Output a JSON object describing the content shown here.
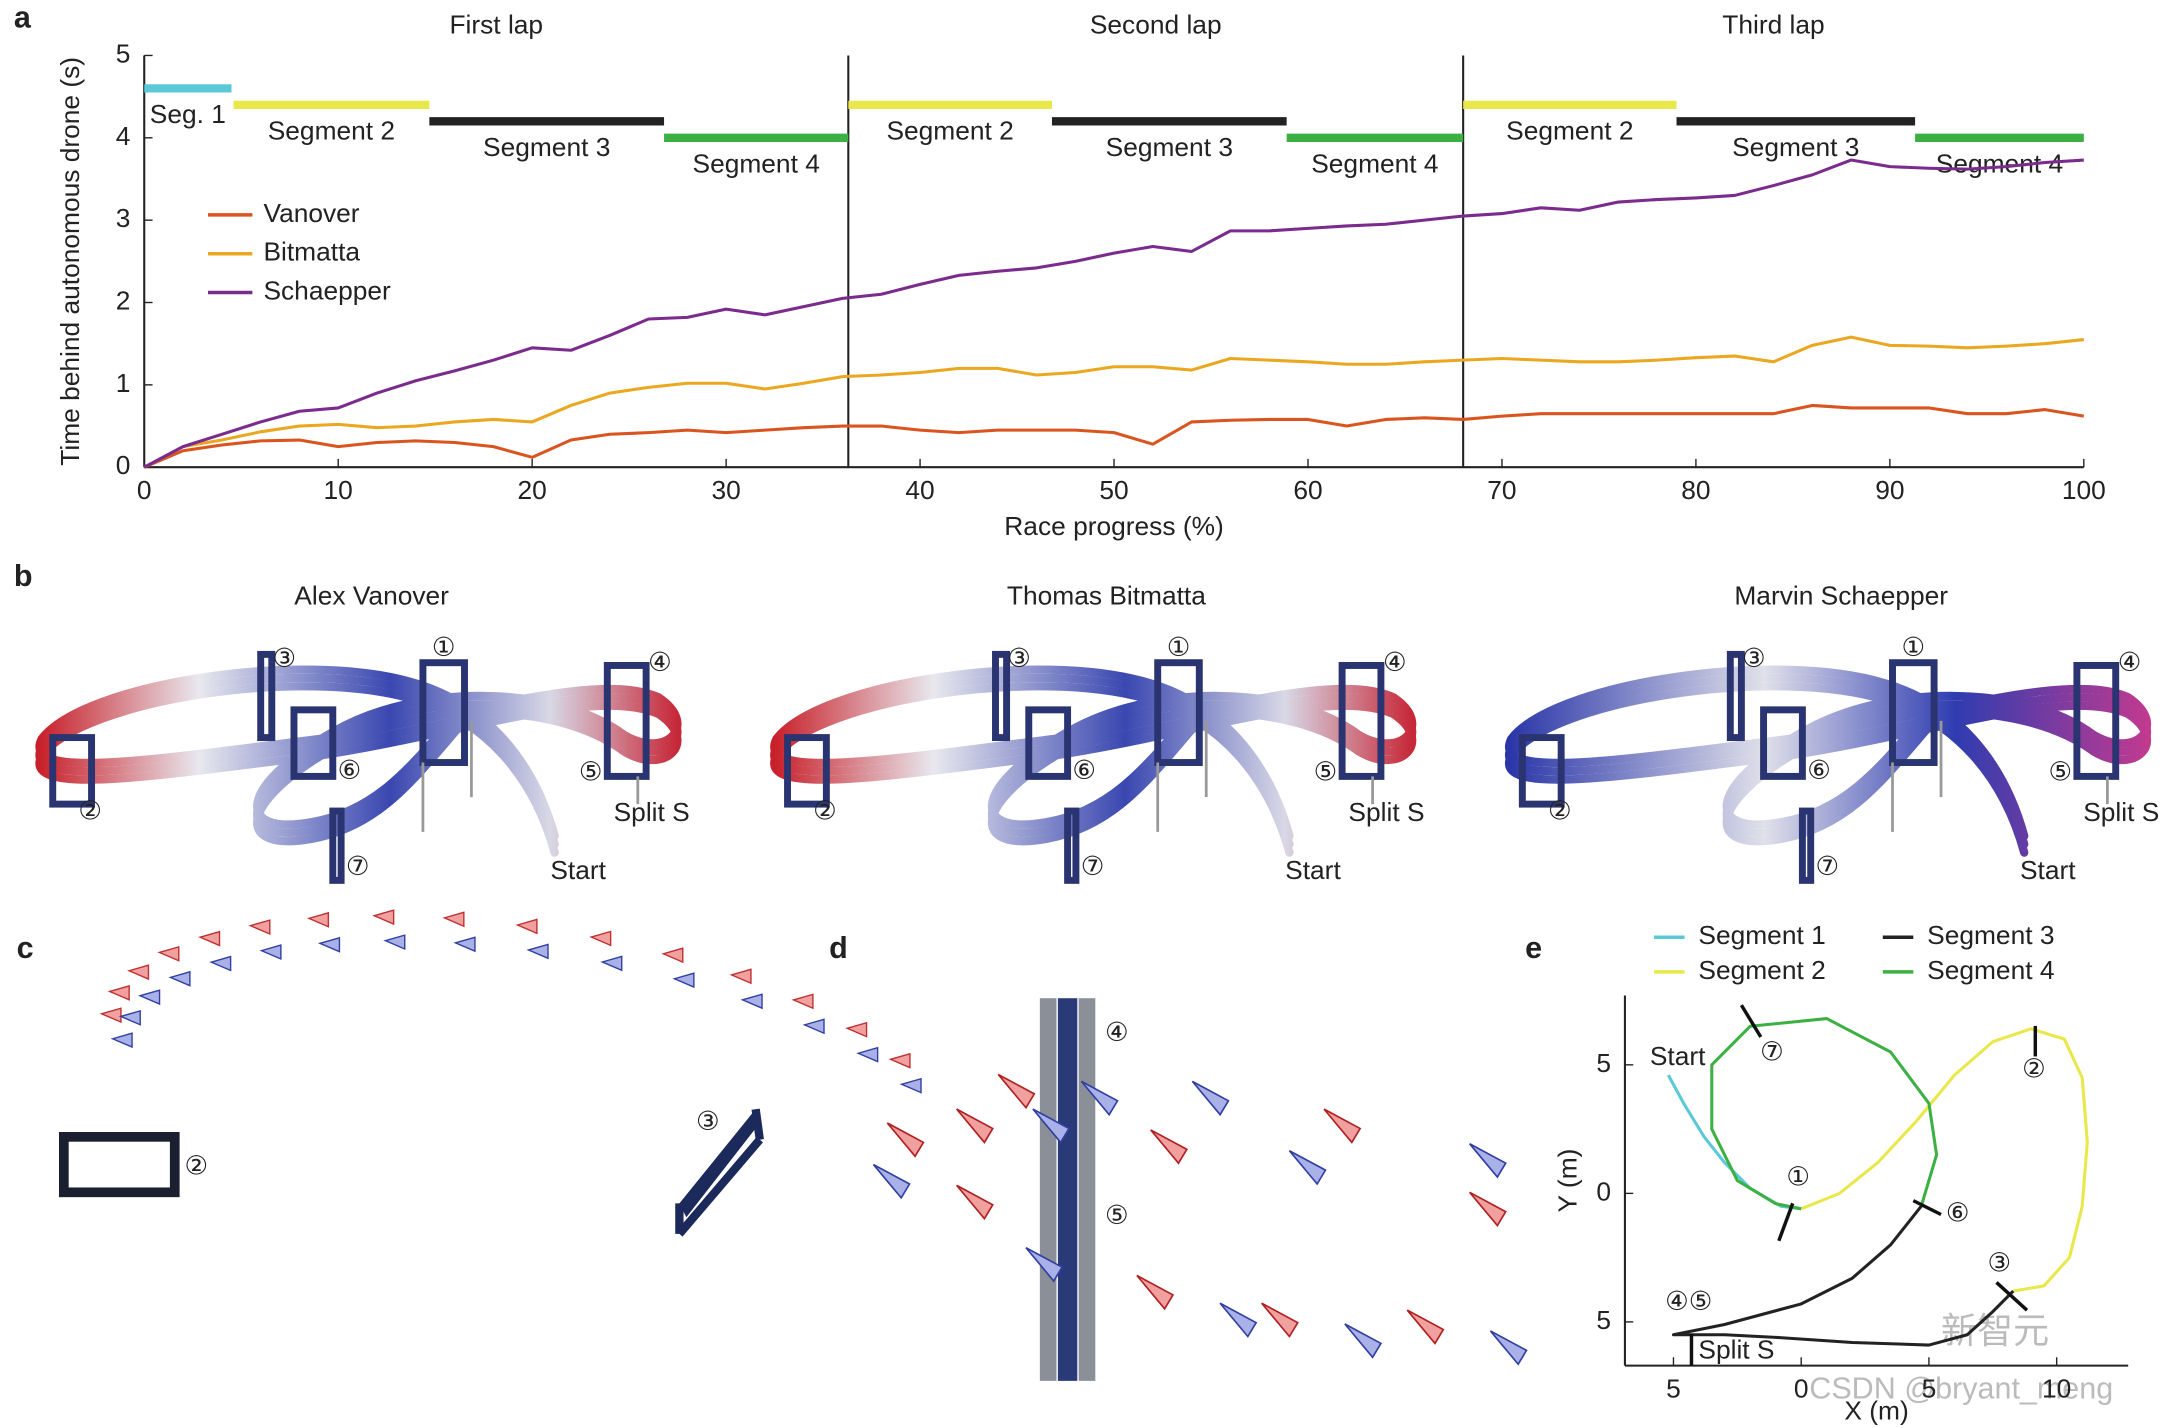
{
  "panel_letters": [
    "a",
    "b",
    "c",
    "d",
    "e"
  ],
  "chart_data": [
    {
      "type": "line",
      "xlabel": "Race progress (%)",
      "ylabel": "Time behind autonomous drone (s)",
      "xlim": [
        0,
        100
      ],
      "ylim": [
        0,
        5
      ],
      "xticks": [
        0,
        10,
        20,
        30,
        40,
        50,
        60,
        70,
        80,
        90,
        100
      ],
      "yticks": [
        0,
        1,
        2,
        3,
        4,
        5
      ],
      "legend": "upper left",
      "x": [
        0,
        2,
        4,
        6,
        8,
        10,
        12,
        14,
        16,
        18,
        20,
        22,
        24,
        26,
        28,
        30,
        32,
        34,
        36,
        38,
        40,
        42,
        44,
        46,
        48,
        50,
        52,
        54,
        56,
        58,
        60,
        62,
        64,
        66,
        68,
        70,
        72,
        74,
        76,
        78,
        80,
        82,
        84,
        86,
        88,
        90,
        92,
        94,
        96,
        98,
        100
      ],
      "series": [
        {
          "name": "Vanover",
          "color": "#d9541e",
          "values": [
            0,
            0.2,
            0.27,
            0.32,
            0.33,
            0.25,
            0.3,
            0.32,
            0.3,
            0.25,
            0.12,
            0.33,
            0.4,
            0.42,
            0.45,
            0.42,
            0.45,
            0.48,
            0.5,
            0.5,
            0.45,
            0.42,
            0.45,
            0.45,
            0.45,
            0.42,
            0.28,
            0.55,
            0.57,
            0.58,
            0.58,
            0.5,
            0.58,
            0.6,
            0.58,
            0.62,
            0.65,
            0.65,
            0.65,
            0.65,
            0.65,
            0.65,
            0.65,
            0.75,
            0.72,
            0.72,
            0.72,
            0.65,
            0.65,
            0.7,
            0.62
          ]
        },
        {
          "name": "Bitmatta",
          "color": "#eaa821",
          "values": [
            0,
            0.25,
            0.33,
            0.43,
            0.5,
            0.52,
            0.48,
            0.5,
            0.55,
            0.58,
            0.55,
            0.75,
            0.9,
            0.97,
            1.02,
            1.02,
            0.95,
            1.02,
            1.1,
            1.12,
            1.15,
            1.2,
            1.2,
            1.12,
            1.15,
            1.22,
            1.22,
            1.18,
            1.32,
            1.3,
            1.28,
            1.25,
            1.25,
            1.28,
            1.3,
            1.32,
            1.3,
            1.28,
            1.28,
            1.3,
            1.33,
            1.35,
            1.28,
            1.48,
            1.58,
            1.48,
            1.47,
            1.45,
            1.47,
            1.5,
            1.55
          ]
        },
        {
          "name": "Schaepper",
          "color": "#7b2a8e",
          "values": [
            0,
            0.25,
            0.4,
            0.55,
            0.68,
            0.72,
            0.9,
            1.05,
            1.17,
            1.3,
            1.45,
            1.42,
            1.6,
            1.8,
            1.82,
            1.92,
            1.85,
            1.95,
            2.05,
            2.1,
            2.22,
            2.33,
            2.38,
            2.42,
            2.5,
            2.6,
            2.68,
            2.62,
            2.87,
            2.87,
            2.9,
            2.93,
            2.95,
            3.0,
            3.05,
            3.08,
            3.15,
            3.12,
            3.22,
            3.25,
            3.27,
            3.3,
            3.42,
            3.55,
            3.73,
            3.65,
            3.63,
            3.62,
            3.65,
            3.7,
            3.73
          ]
        }
      ],
      "laps": [
        {
          "label": "First lap",
          "start": 0,
          "end": 36.3
        },
        {
          "label": "Second lap",
          "start": 36.3,
          "end": 68.0
        },
        {
          "label": "Third lap",
          "start": 68.0,
          "end": 100
        }
      ],
      "segments": [
        {
          "label": "Seg. 1",
          "start": 0,
          "end": 4.5,
          "y": 4.6,
          "color": "#5bc8d8"
        },
        {
          "label": "Segment 2",
          "start": 4.6,
          "end": 14.7,
          "y": 4.4,
          "color": "#e8e84a"
        },
        {
          "label": "Segment 3",
          "start": 14.7,
          "end": 26.8,
          "y": 4.2,
          "color": "#222222"
        },
        {
          "label": "Segment 4",
          "start": 26.8,
          "end": 36.3,
          "y": 4.0,
          "color": "#3cb043"
        },
        {
          "label": "Segment 2",
          "start": 36.3,
          "end": 46.8,
          "y": 4.4,
          "color": "#e8e84a"
        },
        {
          "label": "Segment 3",
          "start": 46.8,
          "end": 58.9,
          "y": 4.2,
          "color": "#222222"
        },
        {
          "label": "Segment 4",
          "start": 58.9,
          "end": 68.0,
          "y": 4.0,
          "color": "#3cb043"
        },
        {
          "label": "Segment 2",
          "start": 68.0,
          "end": 79.0,
          "y": 4.4,
          "color": "#e8e84a"
        },
        {
          "label": "Segment 3",
          "start": 79.0,
          "end": 91.3,
          "y": 4.2,
          "color": "#222222"
        },
        {
          "label": "Segment 4",
          "start": 91.3,
          "end": 100,
          "y": 4.0,
          "color": "#3cb043"
        }
      ]
    },
    {
      "type": "line",
      "xlabel": "X (m)",
      "ylabel": "Y (m)",
      "xlim": [
        -6.9,
        12.8
      ],
      "ylim": [
        -6.7,
        7.7
      ],
      "xticks": [
        {
          "value": -5,
          "label": "5"
        },
        0,
        5,
        10
      ],
      "yticks": [
        {
          "value": -5,
          "label": "5"
        },
        0,
        5
      ],
      "series": [
        {
          "name": "Segment 1",
          "color": "#5bc8d8",
          "x": [
            -5.2,
            -4.6,
            -3.8,
            -3,
            -2,
            -0.8,
            0
          ],
          "values": [
            4.6,
            3.5,
            2.2,
            1.2,
            0.2,
            -0.5,
            -0.6
          ]
        },
        {
          "name": "Segment 2",
          "color": "#e8e84a",
          "x": [
            0,
            1.5,
            3,
            4.5,
            6,
            7.5,
            9,
            10.3,
            11,
            11.2,
            11,
            10.5,
            9.5,
            8.3
          ],
          "values": [
            -0.6,
            0,
            1.2,
            2.8,
            4.6,
            5.9,
            6.4,
            6,
            4.5,
            2,
            -0.5,
            -2.5,
            -3.6,
            -3.8
          ]
        },
        {
          "name": "Segment 3",
          "color": "#222222",
          "x": [
            8.3,
            7.5,
            6.5,
            5,
            2,
            -1,
            -3,
            -5,
            -3,
            0,
            2,
            3.5,
            4.7
          ],
          "values": [
            -3.8,
            -4.6,
            -5.5,
            -5.9,
            -5.8,
            -5.6,
            -5.5,
            -5.5,
            -5.1,
            -4.3,
            -3.3,
            -2,
            -0.5
          ]
        },
        {
          "name": "Segment 4",
          "color": "#3cb043",
          "x": [
            4.7,
            5.3,
            5,
            3.5,
            1,
            -2,
            -3.5,
            -3.5,
            -2.5,
            -1,
            0
          ],
          "values": [
            -0.5,
            1.5,
            3.5,
            5.5,
            6.8,
            6.5,
            5,
            2.5,
            0.5,
            -0.4,
            -0.6
          ]
        }
      ],
      "annotations": [
        "Start",
        "⑦",
        "②",
        "①",
        "⑥",
        "③",
        "④⑤",
        "Split S"
      ]
    }
  ],
  "views": [
    {
      "title": "Alex Vanover",
      "labels": [
        "③",
        "①",
        "④",
        "②",
        "⑥",
        "⑤",
        "Split S",
        "⑦",
        "Start"
      ]
    },
    {
      "title": "Thomas Bitmatta",
      "labels": [
        "③",
        "①",
        "④",
        "②",
        "⑥",
        "⑤",
        "Split S",
        "⑦",
        "Start"
      ]
    },
    {
      "title": "Marvin Schaepper",
      "labels": [
        "③",
        "①",
        "④",
        "②",
        "⑥",
        "⑤",
        "Split S",
        "⑦",
        "Start"
      ]
    }
  ],
  "panel_c": {
    "labels": [
      "②",
      "③"
    ]
  },
  "panel_d": {
    "labels": [
      "④",
      "⑤"
    ]
  },
  "watermark": [
    "新智元",
    "CSDN @bryant_meng"
  ]
}
